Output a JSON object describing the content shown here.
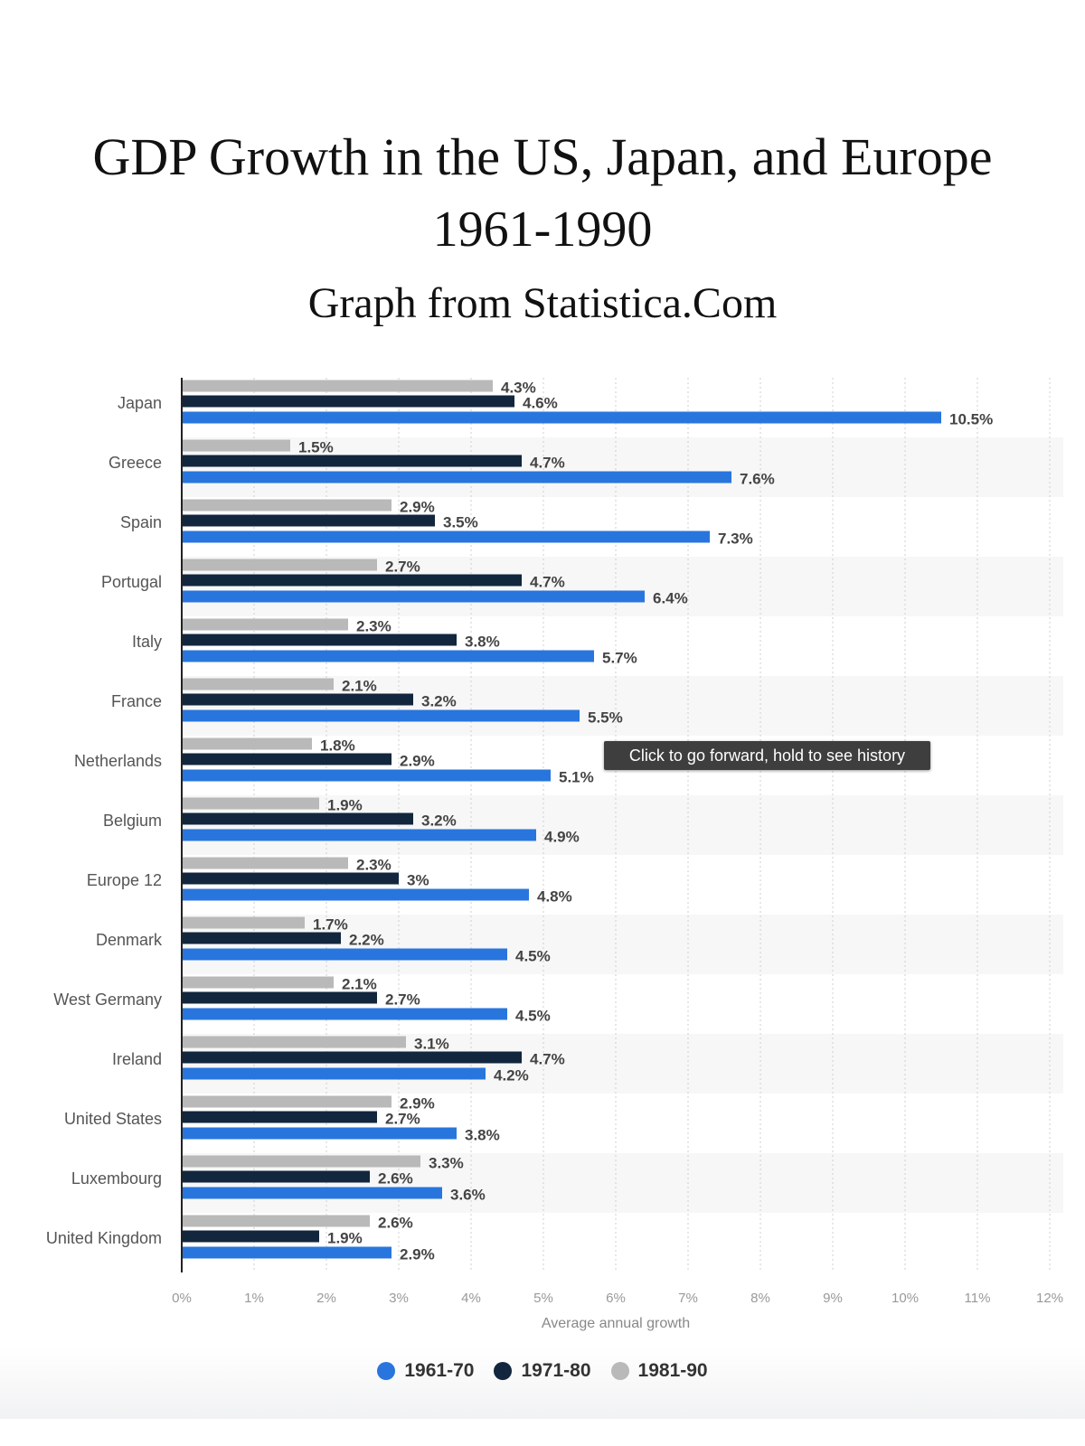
{
  "header": {
    "title_line1": "GDP Growth in the US, Japan, and Europe",
    "title_line2": "1961-1990",
    "subtitle": "Graph from Statistica.Com"
  },
  "tooltip": "Click to go forward, hold to see history",
  "chart_data": {
    "type": "bar",
    "orientation": "horizontal",
    "categories": [
      "Japan",
      "Greece",
      "Spain",
      "Portugal",
      "Italy",
      "France",
      "Netherlands",
      "Belgium",
      "Europe 12",
      "Denmark",
      "West Germany",
      "Ireland",
      "United States",
      "Luxembourg",
      "United Kingdom"
    ],
    "series": [
      {
        "name": "1961-70",
        "color": "#2876dd",
        "values": [
          10.5,
          7.6,
          7.3,
          6.4,
          5.7,
          5.5,
          5.1,
          4.9,
          4.8,
          4.5,
          4.5,
          4.2,
          3.8,
          3.6,
          2.9
        ],
        "labels": [
          "10.5%",
          "7.6%",
          "7.3%",
          "6.4%",
          "5.7%",
          "5.5%",
          "5.1%",
          "4.9%",
          "4.8%",
          "4.5%",
          "4.5%",
          "4.2%",
          "3.8%",
          "3.6%",
          "2.9%"
        ]
      },
      {
        "name": "1971-80",
        "color": "#12263d",
        "values": [
          4.6,
          4.7,
          3.5,
          4.7,
          3.8,
          3.2,
          2.9,
          3.2,
          3,
          2.2,
          2.7,
          4.7,
          2.7,
          2.6,
          1.9
        ],
        "labels": [
          "4.6%",
          "4.7%",
          "3.5%",
          "4.7%",
          "3.8%",
          "3.2%",
          "2.9%",
          "3.2%",
          "3%",
          "2.2%",
          "2.7%",
          "4.7%",
          "2.7%",
          "2.6%",
          "1.9%"
        ]
      },
      {
        "name": "1981-90",
        "color": "#b9b9b9",
        "values": [
          4.3,
          1.5,
          2.9,
          2.7,
          2.3,
          2.1,
          1.8,
          1.9,
          2.3,
          1.7,
          2.1,
          3.1,
          2.9,
          3.3,
          2.6
        ],
        "labels": [
          "4.3%",
          "1.5%",
          "2.9%",
          "2.7%",
          "2.3%",
          "2.1%",
          "1.8%",
          "1.9%",
          "2.3%",
          "1.7%",
          "2.1%",
          "3.1%",
          "2.9%",
          "3.3%",
          "2.6%"
        ]
      }
    ],
    "xlabel": "Average annual growth",
    "xlim": [
      0,
      12
    ],
    "xticks": [
      "0%",
      "1%",
      "2%",
      "3%",
      "4%",
      "5%",
      "6%",
      "7%",
      "8%",
      "9%",
      "10%",
      "11%",
      "12%"
    ],
    "grid": "vertical dashed",
    "legend_position": "bottom"
  }
}
